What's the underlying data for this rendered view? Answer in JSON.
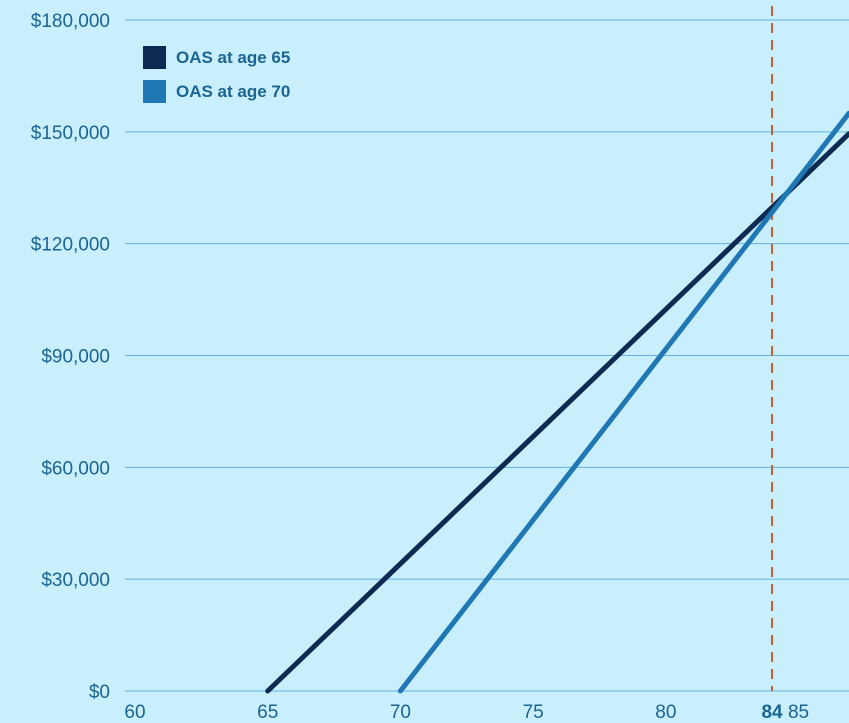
{
  "chart_data": {
    "type": "line",
    "title": "",
    "xlabel": "",
    "ylabel": "",
    "xlim": [
      60,
      86.9
    ],
    "ylim": [
      0,
      180000
    ],
    "x_ticks": [
      60,
      65,
      70,
      75,
      80,
      85
    ],
    "x_tick_labels": [
      "60",
      "65",
      "70",
      "75",
      "80",
      "85"
    ],
    "y_ticks": [
      0,
      30000,
      60000,
      90000,
      120000,
      150000,
      180000
    ],
    "y_tick_labels": [
      "$0",
      "$30,000",
      "$60,000",
      "$90,000",
      "$120,000",
      "$150,000",
      "$180,000"
    ],
    "grid": "horizontal",
    "legend_position": "top-left",
    "series": [
      {
        "name": "OAS at age 65",
        "color": "#0d2b52",
        "points": [
          [
            65,
            0
          ],
          [
            86.9,
            149500
          ]
        ]
      },
      {
        "name": "OAS at age 70",
        "color": "#1f77b4",
        "points": [
          [
            70,
            0
          ],
          [
            86.9,
            155000
          ]
        ]
      }
    ],
    "reference_line": {
      "x": 84,
      "label": "84",
      "color": "#c0613a",
      "style": "dashed"
    },
    "colors": {
      "background": "#c9eefc",
      "grid": "#5fb4dc",
      "text": "#1a6591"
    }
  }
}
